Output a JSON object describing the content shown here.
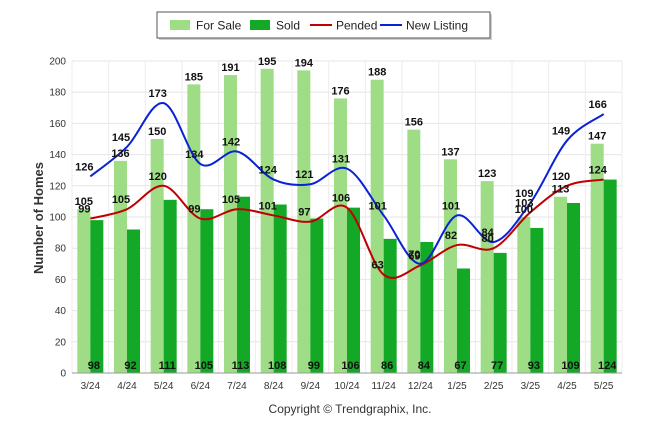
{
  "chart_data": {
    "type": "bar",
    "categories": [
      "3/24",
      "4/24",
      "5/24",
      "6/24",
      "7/24",
      "8/24",
      "9/24",
      "10/24",
      "11/24",
      "12/24",
      "1/25",
      "2/25",
      "3/25",
      "4/25",
      "5/25"
    ],
    "series": [
      {
        "name": "For Sale",
        "kind": "bar",
        "color": "#9edd86",
        "values": [
          105,
          136,
          150,
          185,
          191,
          195,
          194,
          176,
          188,
          156,
          137,
          123,
          100,
          113,
          147
        ]
      },
      {
        "name": "Sold",
        "kind": "bar",
        "color": "#13a826",
        "values": [
          98,
          92,
          111,
          105,
          113,
          108,
          99,
          106,
          86,
          84,
          67,
          77,
          93,
          109,
          124
        ]
      },
      {
        "name": "Pended",
        "kind": "line",
        "color": "#c00000",
        "values": [
          99,
          105,
          120,
          99,
          105,
          101,
          97,
          106,
          63,
          69,
          82,
          80,
          103,
          120,
          124
        ]
      },
      {
        "name": "New Listing",
        "kind": "line",
        "color": "#0a22d4",
        "values": [
          126,
          145,
          173,
          134,
          142,
          124,
          121,
          131,
          101,
          70,
          101,
          84,
          109,
          149,
          166
        ]
      }
    ],
    "ylabel": "Number of Homes",
    "yticks": [
      0,
      20,
      40,
      60,
      80,
      100,
      120,
      140,
      160,
      180,
      200
    ],
    "ylim": [
      0,
      200
    ],
    "legend_position": "top",
    "grid": true
  },
  "copyright": "Copyright © Trendgraphix, Inc."
}
